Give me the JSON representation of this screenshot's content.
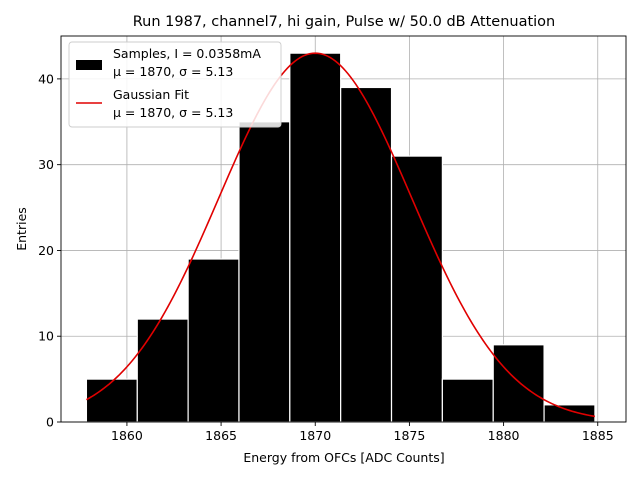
{
  "chart_data": {
    "type": "bar",
    "title": "Run 1987, channel7, hi gain, Pulse w/ 50.0 dB Attenuation",
    "xlabel": "Energy from OFCs [ADC Counts]",
    "ylabel": "Entries",
    "xlim": [
      1856.5,
      1886.5
    ],
    "ylim": [
      0,
      45
    ],
    "xticks": [
      1860,
      1865,
      1870,
      1875,
      1880,
      1885
    ],
    "yticks": [
      0,
      10,
      20,
      30,
      40
    ],
    "grid": true,
    "bins": [
      {
        "x0": 1857.85,
        "x1": 1860.55,
        "count": 5
      },
      {
        "x0": 1860.55,
        "x1": 1863.25,
        "count": 12
      },
      {
        "x0": 1863.25,
        "x1": 1865.95,
        "count": 19
      },
      {
        "x0": 1865.95,
        "x1": 1868.65,
        "count": 35
      },
      {
        "x0": 1868.65,
        "x1": 1871.35,
        "count": 43
      },
      {
        "x0": 1871.35,
        "x1": 1874.05,
        "count": 39
      },
      {
        "x0": 1874.05,
        "x1": 1876.75,
        "count": 31
      },
      {
        "x0": 1876.75,
        "x1": 1879.45,
        "count": 5
      },
      {
        "x0": 1879.45,
        "x1": 1882.15,
        "count": 9
      },
      {
        "x0": 1882.15,
        "x1": 1884.85,
        "count": 2
      }
    ],
    "fit": {
      "name": "Gaussian Fit",
      "amplitude": 43,
      "mu": 1870,
      "sigma": 5.13,
      "x_range": [
        1857.85,
        1884.85
      ],
      "color": "#e00000"
    },
    "legend": {
      "position": "upper-left",
      "entries": [
        {
          "kind": "patch",
          "color": "#000000",
          "line1": "Samples, I = 0.0358mA",
          "line2": "μ = 1870, σ = 5.13"
        },
        {
          "kind": "line",
          "color": "#e00000",
          "line1": "Gaussian Fit",
          "line2": "μ = 1870, σ = 5.13"
        }
      ]
    },
    "bar_color": "#000000",
    "bar_edge_color": "#ffffff"
  }
}
